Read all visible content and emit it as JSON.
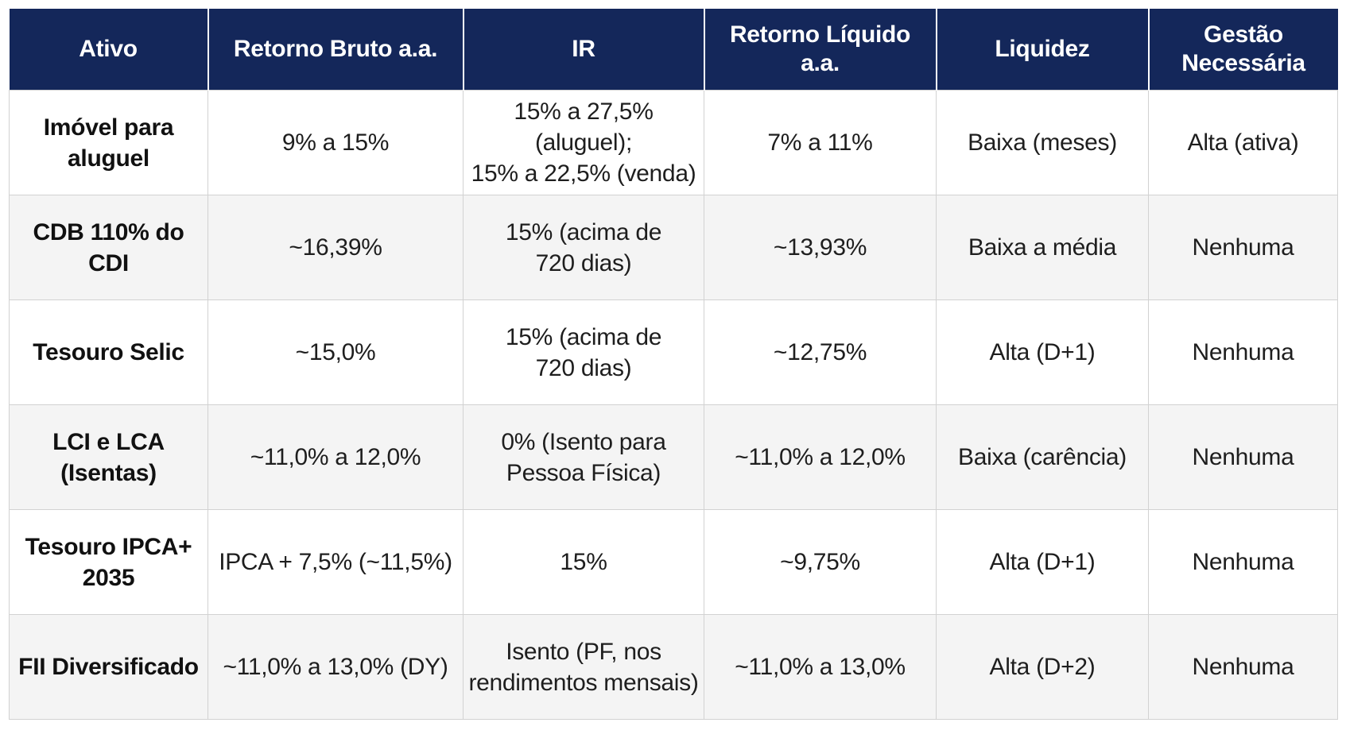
{
  "headers": {
    "ativo": "Ativo",
    "retorno_bruto": "Retorno Bruto a.a.",
    "ir": "IR",
    "retorno_liquido": "Retorno Líquido a.a.",
    "liquidez": "Liquidez",
    "gestao_line1": "Gestão",
    "gestao_line2": "Necessária"
  },
  "rows": [
    {
      "ativo": "Imóvel para aluguel",
      "retorno_bruto": "9% a 15%",
      "ir_line1": "15% a 27,5% (aluguel);",
      "ir_line2": "15% a 22,5% (venda)",
      "retorno_liquido": "7% a 11%",
      "liquidez": "Baixa (meses)",
      "gestao": "Alta (ativa)"
    },
    {
      "ativo": "CDB 110% do CDI",
      "retorno_bruto": "~16,39%",
      "ir_line1": "15% (acima de",
      "ir_line2": "720 dias)",
      "retorno_liquido": "~13,93%",
      "liquidez": "Baixa a média",
      "gestao": "Nenhuma"
    },
    {
      "ativo": "Tesouro Selic",
      "retorno_bruto": "~15,0%",
      "ir_line1": "15% (acima de",
      "ir_line2": "720 dias)",
      "retorno_liquido": "~12,75%",
      "liquidez": "Alta (D+1)",
      "gestao": "Nenhuma"
    },
    {
      "ativo": "LCI e LCA (Isentas)",
      "retorno_bruto": "~11,0% a 12,0%",
      "ir_line1": "0% (Isento para",
      "ir_line2": "Pessoa Física)",
      "retorno_liquido": "~11,0% a 12,0%",
      "liquidez": "Baixa (carência)",
      "gestao": "Nenhuma"
    },
    {
      "ativo": "Tesouro IPCA+ 2035",
      "retorno_bruto": "IPCA + 7,5% (~11,5%)",
      "ir_line1": "15%",
      "ir_line2": "",
      "retorno_liquido": "~9,75%",
      "liquidez": "Alta (D+1)",
      "gestao": "Nenhuma"
    },
    {
      "ativo": "FII Diversificado",
      "retorno_bruto": "~11,0% a 13,0% (DY)",
      "ir_line1": "Isento (PF, nos",
      "ir_line2": "rendimentos mensais)",
      "retorno_liquido": "~11,0% a 13,0%",
      "liquidez": "Alta (D+2)",
      "gestao": "Nenhuma"
    }
  ],
  "colors": {
    "header_bg": "#14275a",
    "header_text": "#ffffff",
    "row_alt_bg": "#f4f4f4",
    "border": "#d2d2d2"
  }
}
